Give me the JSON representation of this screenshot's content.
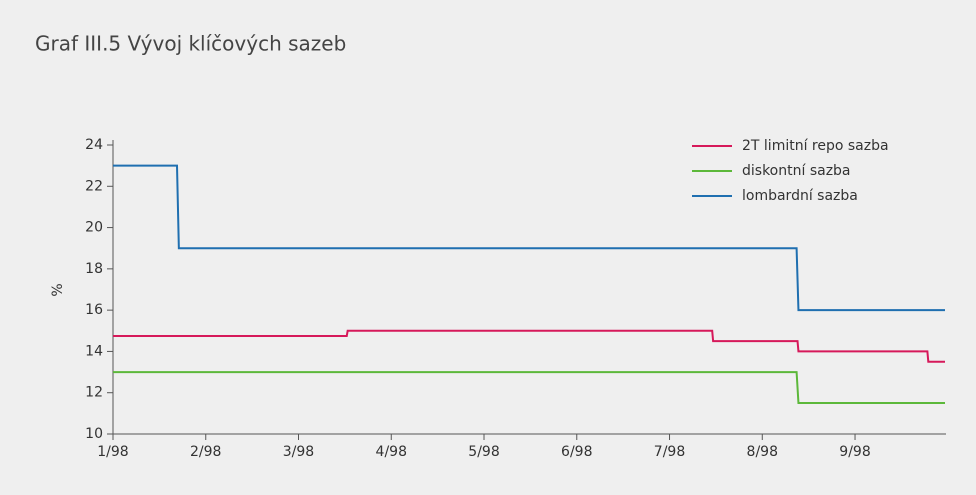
{
  "chart_data": {
    "type": "line",
    "title": "Graf III.5 Vývoj klíčových sazeb",
    "y_label": "%",
    "xlim": [
      0,
      8.97
    ],
    "xticks": [
      {
        "value": 0,
        "label": "1/98"
      },
      {
        "value": 1,
        "label": "2/98"
      },
      {
        "value": 2,
        "label": "3/98"
      },
      {
        "value": 3,
        "label": "4/98"
      },
      {
        "value": 4,
        "label": "5/98"
      },
      {
        "value": 5,
        "label": "6/98"
      },
      {
        "value": 6,
        "label": "7/98"
      },
      {
        "value": 7,
        "label": "8/98"
      },
      {
        "value": 8,
        "label": "9/98"
      }
    ],
    "ylim": [
      10,
      24
    ],
    "yticks": [
      10,
      12,
      14,
      16,
      18,
      20,
      22,
      24
    ],
    "legend": "top-right",
    "series": [
      {
        "name": "2T limitní repo sazba",
        "color": "#d6195a",
        "x": [
          0,
          2.52,
          2.53,
          6.46,
          6.47,
          7.38,
          7.39,
          8.78,
          8.79,
          8.97
        ],
        "values": [
          14.75,
          14.75,
          15,
          15,
          14.5,
          14.5,
          14,
          14,
          13.5,
          13.5
        ]
      },
      {
        "name": "diskontní sazba",
        "color": "#5cb83a",
        "x": [
          0,
          7.37,
          7.39,
          8.97
        ],
        "values": [
          13,
          13,
          11.5,
          11.5
        ]
      },
      {
        "name": "lombardní sazba",
        "color": "#1f6fb0",
        "x": [
          0,
          0.69,
          0.71,
          7.37,
          7.39,
          8.97
        ],
        "values": [
          23,
          23,
          19,
          19,
          16,
          16
        ]
      }
    ]
  }
}
